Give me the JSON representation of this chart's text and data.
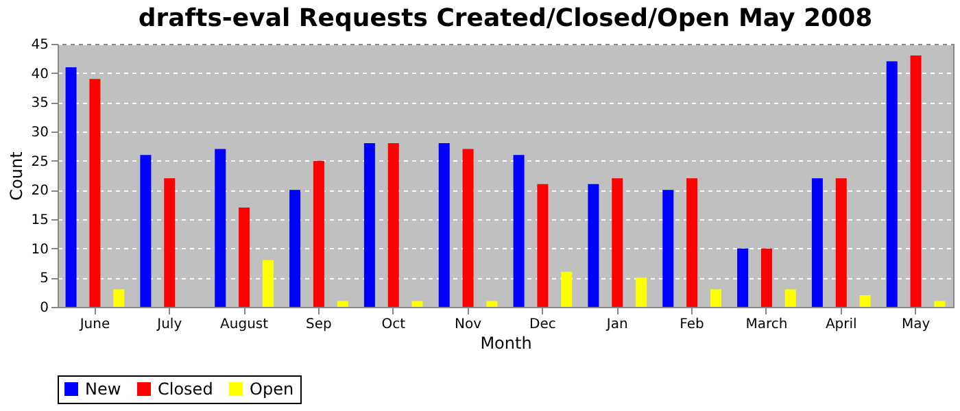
{
  "chart_data": {
    "type": "bar",
    "title": "drafts-eval Requests Created/Closed/Open May 2008",
    "xlabel": "Month",
    "ylabel": "Count",
    "categories": [
      "June",
      "July",
      "August",
      "Sep",
      "Oct",
      "Nov",
      "Dec",
      "Jan",
      "Feb",
      "March",
      "April",
      "May"
    ],
    "series": [
      {
        "name": "New",
        "color": "#0000ff",
        "values": [
          41,
          26,
          27,
          20,
          28,
          28,
          26,
          21,
          20,
          10,
          22,
          42
        ]
      },
      {
        "name": "Closed",
        "color": "#ff0000",
        "values": [
          39,
          22,
          17,
          25,
          28,
          27,
          21,
          22,
          22,
          10,
          22,
          43
        ]
      },
      {
        "name": "Open",
        "color": "#ffff00",
        "values": [
          3,
          0,
          8,
          1,
          1,
          1,
          6,
          5,
          3,
          3,
          2,
          1
        ]
      }
    ],
    "ylim": [
      0,
      45
    ],
    "yticks": [
      0,
      5,
      10,
      15,
      20,
      25,
      30,
      35,
      40,
      45
    ],
    "grid": "y",
    "legend": "bottom"
  }
}
